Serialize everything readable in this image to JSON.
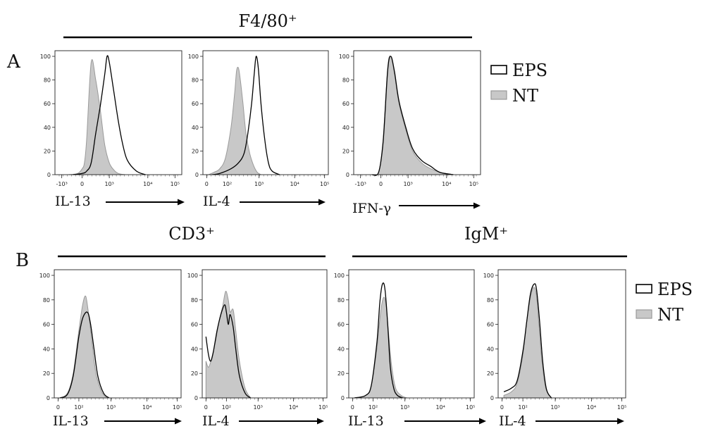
{
  "panel_labels": {
    "A": "A",
    "B": "B"
  },
  "groups": {
    "f480": "F4/80⁺",
    "cd3": "CD3⁺",
    "igm": "IgM⁺"
  },
  "legend": {
    "eps": "EPS",
    "nt": "NT",
    "eps_color": "#000000",
    "nt_fill": "#c8c8c8",
    "nt_stroke": "#9a9a9a"
  },
  "chart_data": [
    {
      "type": "area",
      "id": "A1",
      "xlabel": "IL-13",
      "y_ticks": [
        "0",
        "20",
        "40",
        "60",
        "80",
        "100"
      ],
      "x_ticks": [
        "-10³",
        "0",
        "10³",
        "10⁴",
        "10⁵"
      ],
      "ylim": [
        0,
        100
      ],
      "series": [
        {
          "name": "NT",
          "x": [
            -0.3,
            -0.1,
            0.0,
            0.05,
            0.1,
            0.2,
            0.3,
            0.4,
            0.5,
            0.6,
            0.7,
            0.8,
            0.95
          ],
          "y": [
            0,
            1,
            5,
            10,
            30,
            95,
            80,
            55,
            25,
            10,
            4,
            1,
            0
          ]
        },
        {
          "name": "EPS",
          "x": [
            -0.2,
            0.0,
            0.1,
            0.2,
            0.3,
            0.4,
            0.5,
            0.55,
            0.6,
            0.7,
            0.8,
            0.9,
            1.0,
            1.2,
            1.4
          ],
          "y": [
            0,
            1,
            3,
            10,
            35,
            58,
            85,
            100,
            95,
            70,
            45,
            25,
            12,
            3,
            0
          ]
        }
      ]
    },
    {
      "type": "area",
      "id": "A2",
      "xlabel": "IL-4",
      "y_ticks": [
        "0",
        "20",
        "40",
        "60",
        "80",
        "100"
      ],
      "x_ticks": [
        "0",
        "10²",
        "10³",
        "10⁴",
        "10⁵"
      ],
      "ylim": [
        0,
        100
      ],
      "series": [
        {
          "name": "NT",
          "x": [
            -0.3,
            -0.15,
            0.0,
            0.15,
            0.3,
            0.4,
            0.45,
            0.5,
            0.55,
            0.62,
            0.7,
            0.8,
            0.9,
            1.0,
            1.1
          ],
          "y": [
            0,
            2,
            5,
            14,
            40,
            70,
            88,
            90,
            80,
            60,
            35,
            18,
            8,
            2,
            0
          ]
        },
        {
          "name": "EPS",
          "x": [
            -0.2,
            0.0,
            0.3,
            0.5,
            0.65,
            0.75,
            0.85,
            0.92,
            0.97,
            1.03,
            1.1,
            1.2,
            1.3,
            1.4,
            1.6
          ],
          "y": [
            0,
            1,
            5,
            10,
            18,
            35,
            60,
            85,
            100,
            90,
            60,
            30,
            10,
            3,
            0
          ]
        }
      ]
    },
    {
      "type": "area",
      "id": "A3",
      "xlabel": "IFN-γ",
      "y_ticks": [
        "0",
        "20",
        "40",
        "60",
        "80",
        "100"
      ],
      "x_ticks": [
        "-10³",
        "0",
        "10³",
        "10⁴",
        "10⁵"
      ],
      "ylim": [
        0,
        100
      ],
      "series": [
        {
          "name": "NT",
          "x": [
            -0.2,
            -0.05,
            0.05,
            0.15,
            0.22,
            0.3,
            0.4,
            0.55,
            0.7,
            0.9,
            1.1,
            1.3,
            1.6
          ],
          "y": [
            0,
            2,
            30,
            90,
            100,
            85,
            60,
            38,
            20,
            10,
            5,
            2,
            0
          ]
        },
        {
          "name": "EPS",
          "x": [
            -0.2,
            -0.05,
            0.05,
            0.15,
            0.22,
            0.3,
            0.4,
            0.55,
            0.7,
            0.9,
            1.1,
            1.3,
            1.6
          ],
          "y": [
            0,
            2,
            28,
            88,
            100,
            87,
            62,
            40,
            22,
            12,
            7,
            2,
            0
          ]
        }
      ]
    },
    {
      "type": "area",
      "id": "B1",
      "xlabel": "IL-13",
      "y_ticks": [
        "0",
        "20",
        "40",
        "60",
        "80",
        "100"
      ],
      "x_ticks": [
        "0",
        "10²",
        "10³",
        "10⁴",
        "10⁵"
      ],
      "ylim": [
        0,
        100
      ],
      "series": [
        {
          "name": "NT",
          "x": [
            -0.3,
            -0.1,
            0.05,
            0.2,
            0.3,
            0.38,
            0.45,
            0.55,
            0.65,
            0.8,
            0.95
          ],
          "y": [
            0,
            4,
            20,
            55,
            76,
            83,
            70,
            45,
            20,
            5,
            0
          ]
        },
        {
          "name": "EPS",
          "x": [
            -0.3,
            -0.1,
            0.05,
            0.2,
            0.3,
            0.42,
            0.5,
            0.6,
            0.7,
            0.85,
            1.0
          ],
          "y": [
            0,
            3,
            18,
            50,
            65,
            70,
            62,
            40,
            18,
            4,
            0
          ]
        }
      ]
    },
    {
      "type": "area",
      "id": "B2",
      "xlabel": "IL-4",
      "y_ticks": [
        "0",
        "20",
        "40",
        "60",
        "80",
        "100"
      ],
      "x_ticks": [
        "0",
        "10²",
        "10³",
        "10⁴",
        "10⁵"
      ],
      "ylim": [
        0,
        100
      ],
      "series": [
        {
          "name": "NT",
          "x": [
            -0.35,
            -0.28,
            -0.2,
            -0.1,
            0.0,
            0.1,
            0.18,
            0.25,
            0.3,
            0.38,
            0.45,
            0.55,
            0.7,
            0.85
          ],
          "y": [
            30,
            25,
            32,
            45,
            62,
            75,
            87,
            80,
            70,
            72,
            55,
            30,
            8,
            0
          ]
        },
        {
          "name": "EPS",
          "x": [
            -0.35,
            -0.28,
            -0.22,
            -0.15,
            -0.05,
            0.05,
            0.15,
            0.2,
            0.25,
            0.3,
            0.38,
            0.45,
            0.55,
            0.7,
            0.85
          ],
          "y": [
            50,
            35,
            30,
            38,
            55,
            68,
            76,
            70,
            60,
            68,
            58,
            40,
            18,
            4,
            0
          ]
        }
      ]
    },
    {
      "type": "area",
      "id": "B3",
      "xlabel": "IL-13",
      "y_ticks": [
        "0",
        "20",
        "40",
        "60",
        "80",
        "100"
      ],
      "x_ticks": [
        "0",
        "10²",
        "10³",
        "10⁴",
        "10⁵"
      ],
      "ylim": [
        0,
        100
      ],
      "series": [
        {
          "name": "NT",
          "x": [
            -0.3,
            0.0,
            0.15,
            0.3,
            0.4,
            0.48,
            0.55,
            0.62,
            0.7,
            0.8,
            0.95,
            1.1
          ],
          "y": [
            0,
            2,
            10,
            40,
            70,
            82,
            75,
            50,
            25,
            8,
            2,
            0
          ]
        },
        {
          "name": "EPS",
          "x": [
            -0.3,
            0.0,
            0.15,
            0.3,
            0.38,
            0.45,
            0.52,
            0.6,
            0.66,
            0.75,
            0.85,
            1.0
          ],
          "y": [
            0,
            2,
            10,
            45,
            78,
            93,
            88,
            55,
            25,
            8,
            2,
            0
          ]
        }
      ]
    },
    {
      "type": "area",
      "id": "B4",
      "xlabel": "IL-4",
      "y_ticks": [
        "0",
        "20",
        "40",
        "60",
        "80",
        "100"
      ],
      "x_ticks": [
        "0",
        "10²",
        "10³",
        "10⁴",
        "10⁵"
      ],
      "ylim": [
        0,
        100
      ],
      "series": [
        {
          "name": "NT",
          "x": [
            -0.3,
            -0.1,
            0.05,
            0.2,
            0.3,
            0.4,
            0.48,
            0.55,
            0.62,
            0.7,
            0.8,
            0.95
          ],
          "y": [
            2,
            5,
            12,
            35,
            62,
            82,
            90,
            85,
            60,
            30,
            8,
            0
          ]
        },
        {
          "name": "EPS",
          "x": [
            -0.3,
            -0.1,
            0.05,
            0.2,
            0.3,
            0.4,
            0.5,
            0.56,
            0.64,
            0.72,
            0.82,
            0.95
          ],
          "y": [
            5,
            8,
            14,
            38,
            62,
            85,
            93,
            88,
            62,
            30,
            7,
            0
          ]
        }
      ]
    }
  ]
}
